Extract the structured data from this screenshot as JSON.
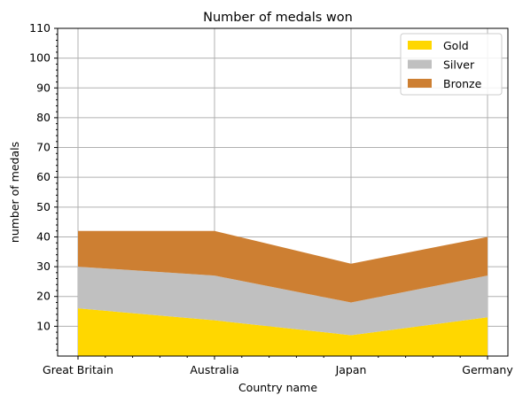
{
  "chart_data": {
    "type": "area",
    "stacked": true,
    "title": "Number of medals won",
    "xlabel": "Country name",
    "ylabel": "number of medals",
    "categories": [
      "Great Britain",
      "Australia",
      "Japan",
      "Germany"
    ],
    "series": [
      {
        "name": "Gold",
        "values": [
          16,
          12,
          7,
          13
        ],
        "color": "#ffd700"
      },
      {
        "name": "Silver",
        "values": [
          14,
          15,
          11,
          14
        ],
        "color": "#c0c0c0"
      },
      {
        "name": "Bronze",
        "values": [
          12,
          15,
          13,
          13
        ],
        "color": "#cd7f32"
      }
    ],
    "ylim": [
      0,
      110
    ],
    "yticks": [
      10,
      20,
      30,
      40,
      50,
      60,
      70,
      80,
      90,
      100,
      110
    ],
    "grid": true,
    "legend_position": "top-right"
  }
}
